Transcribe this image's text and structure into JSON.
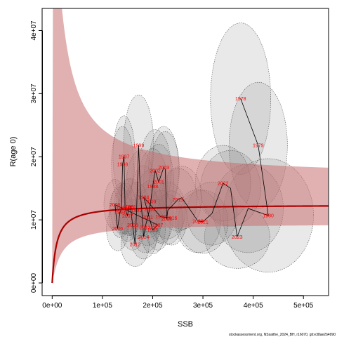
{
  "chart_data": {
    "type": "scatter",
    "xlabel": "SSB",
    "ylabel": "R(age 0)",
    "xlim": [
      -20000,
      550000
    ],
    "ylim": [
      -2000000,
      43500000
    ],
    "x_ticks": [
      {
        "value": 0,
        "label": "0e+00"
      },
      {
        "value": 100000,
        "label": "1e+05"
      },
      {
        "value": 200000,
        "label": "2e+05"
      },
      {
        "value": 300000,
        "label": "3e+05"
      },
      {
        "value": 400000,
        "label": "4e+05"
      },
      {
        "value": 500000,
        "label": "5e+05"
      }
    ],
    "y_ticks": [
      {
        "value": 0,
        "label": "0e+00"
      },
      {
        "value": 10000000,
        "label": "1e+07"
      },
      {
        "value": 20000000,
        "label": "2e+07"
      },
      {
        "value": 30000000,
        "label": "3e+07"
      },
      {
        "value": 40000000,
        "label": "4e+07"
      }
    ],
    "curve": {
      "model": "beverton-holt",
      "a": 12400000,
      "b": 9000,
      "color": "#aa0000"
    },
    "band": {
      "upper_factor": 1.35,
      "lower_factor": 0.76,
      "color": "#c87070"
    },
    "points": [
      {
        "year": "1978",
        "x": 375000,
        "y": 29200000,
        "sx": 60000,
        "sy": 12000000
      },
      {
        "year": "1979",
        "x": 410000,
        "y": 21800000,
        "sx": 58000,
        "sy": 10000000
      },
      {
        "year": "1980",
        "x": 430000,
        "y": 10700000,
        "sx": 90000,
        "sy": 9000000
      },
      {
        "year": "",
        "x": 390000,
        "y": 11800000,
        "sx": 70000,
        "sy": 7000000
      },
      {
        "year": "2023",
        "x": 368000,
        "y": 7300000,
        "sx": 65000,
        "sy": 5000000
      },
      {
        "year": "",
        "x": 355000,
        "y": 15000000,
        "sx": 60000,
        "sy": 6000000
      },
      {
        "year": "2022",
        "x": 340000,
        "y": 15800000,
        "sx": 55000,
        "sy": 6000000
      },
      {
        "year": "",
        "x": 318000,
        "y": 11000000,
        "sx": 50000,
        "sy": 5000000
      },
      {
        "year": "2021",
        "x": 300000,
        "y": 9700000,
        "sx": 50000,
        "sy": 5000000
      },
      {
        "year": "2020",
        "x": 290000,
        "y": 9800000,
        "sx": 45000,
        "sy": 5000000
      },
      {
        "year": "",
        "x": 258000,
        "y": 13500000,
        "sx": 40000,
        "sy": 5000000
      },
      {
        "year": "2015",
        "x": 250000,
        "y": 13200000,
        "sx": 38000,
        "sy": 5000000
      },
      {
        "year": "",
        "x": 230000,
        "y": 11500000,
        "sx": 35000,
        "sy": 4500000
      },
      {
        "year": "2004",
        "x": 228000,
        "y": 10100000,
        "sx": 32000,
        "sy": 4000000
      },
      {
        "year": "",
        "x": 225000,
        "y": 18000000,
        "sx": 28000,
        "sy": 6000000
      },
      {
        "year": "2003",
        "x": 222000,
        "y": 18300000,
        "sx": 30000,
        "sy": 6500000
      },
      {
        "year": "2001",
        "x": 212000,
        "y": 16000000,
        "sx": 30000,
        "sy": 6000000
      },
      {
        "year": "2002",
        "x": 205000,
        "y": 17800000,
        "sx": 32000,
        "sy": 6500000
      },
      {
        "year": "1988",
        "x": 200000,
        "y": 15300000,
        "sx": 30000,
        "sy": 6000000
      },
      {
        "year": "2009",
        "x": 196000,
        "y": 12900000,
        "sx": 30000,
        "sy": 5000000
      },
      {
        "year": "2010",
        "x": 194000,
        "y": 11700000,
        "sx": 28000,
        "sy": 4500000
      },
      {
        "year": "2011",
        "x": 190000,
        "y": 10400000,
        "sx": 28000,
        "sy": 4500000
      },
      {
        "year": "2013",
        "x": 185000,
        "y": 8800000,
        "sx": 28000,
        "sy": 4000000
      },
      {
        "year": "2014",
        "x": 182000,
        "y": 7300000,
        "sx": 26000,
        "sy": 3500000
      },
      {
        "year": "",
        "x": 175000,
        "y": 15000000,
        "sx": 28000,
        "sy": 6000000
      },
      {
        "year": "1999",
        "x": 172000,
        "y": 21800000,
        "sx": 30000,
        "sy": 8000000
      },
      {
        "year": "1992",
        "x": 168000,
        "y": 11500000,
        "sx": 25000,
        "sy": 4500000
      },
      {
        "year": "2012",
        "x": 165000,
        "y": 6100000,
        "sx": 28000,
        "sy": 3500000
      },
      {
        "year": "2005",
        "x": 160000,
        "y": 9200000,
        "sx": 25000,
        "sy": 4000000
      },
      {
        "year": "1991",
        "x": 156000,
        "y": 12100000,
        "sx": 25000,
        "sy": 4500000
      },
      {
        "year": "2000",
        "x": 152000,
        "y": 12000000,
        "sx": 25000,
        "sy": 4500000
      },
      {
        "year": "2007",
        "x": 150000,
        "y": 10600000,
        "sx": 22000,
        "sy": 4000000
      },
      {
        "year": "1990",
        "x": 145000,
        "y": 11800000,
        "sx": 22000,
        "sy": 4000000
      },
      {
        "year": "1997",
        "x": 143000,
        "y": 20000000,
        "sx": 22000,
        "sy": 6500000
      },
      {
        "year": "1998",
        "x": 140000,
        "y": 18800000,
        "sx": 22000,
        "sy": 6000000
      },
      {
        "year": "1986",
        "x": 138000,
        "y": 11800000,
        "sx": 22000,
        "sy": 4000000
      },
      {
        "year": "1994",
        "x": 135000,
        "y": 11200000,
        "sx": 22000,
        "sy": 4000000
      },
      {
        "year": "2006",
        "x": 130000,
        "y": 8600000,
        "sx": 22000,
        "sy": 3500000
      },
      {
        "year": "2008",
        "x": 125000,
        "y": 12400000,
        "sx": 22000,
        "sy": 4000000
      },
      {
        "year": "1987",
        "x": 210000,
        "y": 9200000,
        "sx": 25000,
        "sy": 4000000
      },
      {
        "year": "1985",
        "x": 200000,
        "y": 8400000,
        "sx": 25000,
        "sy": 3800000
      },
      {
        "year": "1984",
        "x": 182000,
        "y": 13600000,
        "sx": 25000,
        "sy": 5000000
      },
      {
        "year": "1996",
        "x": 216000,
        "y": 10500000,
        "sx": 25000,
        "sy": 4200000
      },
      {
        "year": "2016",
        "x": 238000,
        "y": 10300000,
        "sx": 30000,
        "sy": 4300000
      }
    ]
  },
  "credit": "stockassessment.org, NSsaithe_2024_BH, r16070, git:e38ae2b4990"
}
